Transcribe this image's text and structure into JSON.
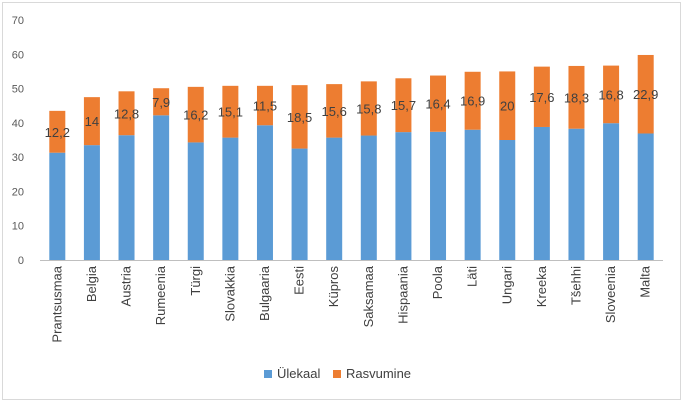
{
  "chart_data": {
    "type": "bar",
    "stacked": true,
    "categories": [
      "Prantsusmaa",
      "Belgia",
      "Austria",
      "Rumeenia",
      "Türgi",
      "Slovakkia",
      "Bulgaaria",
      "Eesti",
      "Küpros",
      "Saksamaa",
      "Hispaania",
      "Poola",
      "Läti",
      "Ungari",
      "Kreeka",
      "Tšehhi",
      "Sloveenia",
      "Malta"
    ],
    "series": [
      {
        "name": "Ülekaal",
        "color": "#5b9bd5",
        "values": [
          31.3,
          33.5,
          36.4,
          42.2,
          34.3,
          35.7,
          39.3,
          32.5,
          35.7,
          36.3,
          37.3,
          37.4,
          38.0,
          35.0,
          38.8,
          38.3,
          39.9,
          36.9
        ]
      },
      {
        "name": "Rasvumine",
        "color": "#ed7d31",
        "values": [
          12.2,
          14,
          12.8,
          7.9,
          16.2,
          15.1,
          11.5,
          18.5,
          15.6,
          15.8,
          15.7,
          16.4,
          16.9,
          20,
          17.6,
          18.3,
          16.8,
          22.9
        ]
      }
    ],
    "data_labels": [
      "12,2",
      "14",
      "12,8",
      "7,9",
      "16,2",
      "15,1",
      "11,5",
      "18,5",
      "15,6",
      "15,8",
      "15,7",
      "16,4",
      "16,9",
      "20",
      "17,6",
      "18,3",
      "16,8",
      "22,9"
    ],
    "y_ticks": [
      "0",
      "10",
      "20",
      "30",
      "40",
      "50",
      "60",
      "70"
    ],
    "ylim": [
      0,
      70
    ],
    "grid": false,
    "legend_position": "bottom"
  }
}
